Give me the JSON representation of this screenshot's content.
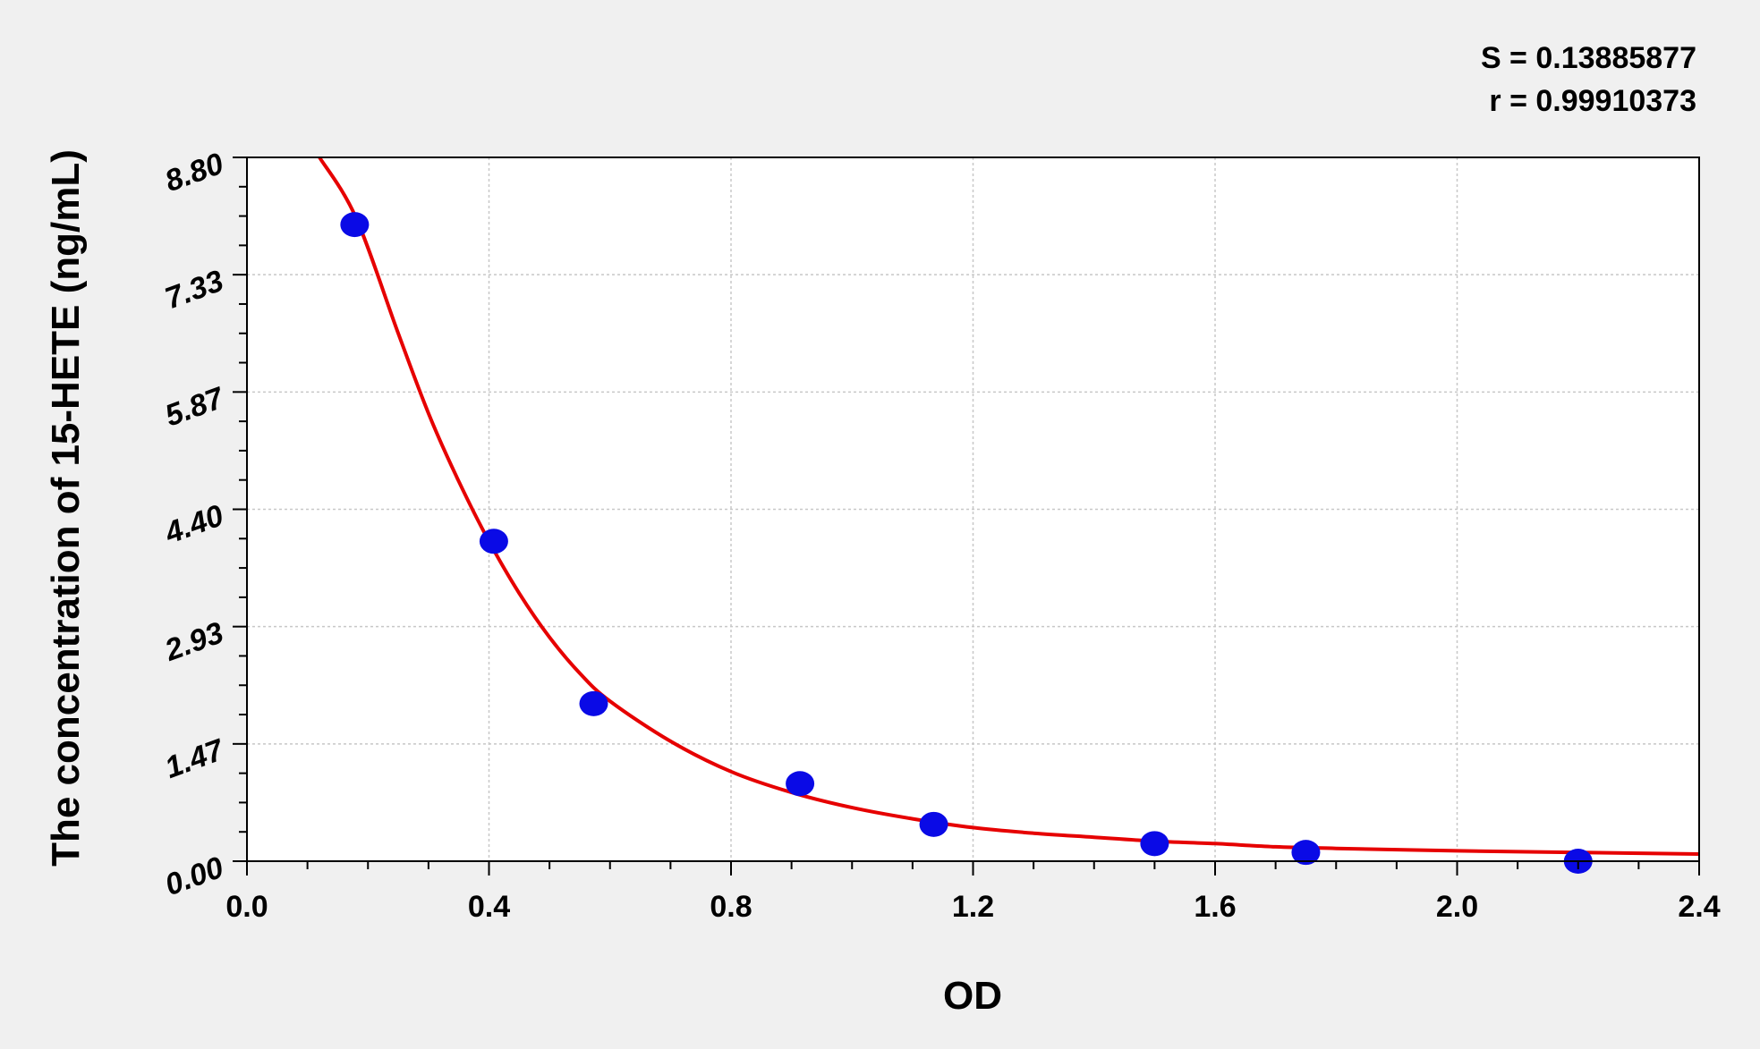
{
  "chart_data": {
    "type": "scatter",
    "xlabel": "OD",
    "ylabel": "The concentration of 15-HETE (ng/mL)",
    "xlim": [
      0,
      2.4
    ],
    "ylim": [
      0,
      8.8
    ],
    "x_ticks": [
      "0.0",
      "0.4",
      "0.8",
      "1.2",
      "1.6",
      "2.0",
      "2.4"
    ],
    "y_ticks": [
      "0.00",
      "1.47",
      "2.93",
      "4.40",
      "5.87",
      "7.33",
      "8.80"
    ],
    "grid": true,
    "stats": [
      "S = 0.13885877",
      "r = 0.99910373"
    ],
    "points": {
      "color": "#0a0ae6",
      "x": [
        0.178,
        0.408,
        0.573,
        0.914,
        1.135,
        1.5,
        1.75,
        2.2
      ],
      "y": [
        7.96,
        4.0,
        1.97,
        0.97,
        0.46,
        0.22,
        0.11,
        0.0
      ]
    },
    "fit_curve": {
      "color": "#e60000",
      "x": [
        0.12,
        0.18,
        0.25,
        0.3,
        0.35,
        0.4,
        0.45,
        0.5,
        0.55,
        0.6,
        0.7,
        0.8,
        0.9,
        1.0,
        1.1,
        1.2,
        1.3,
        1.4,
        1.5,
        1.6,
        1.7,
        1.8,
        2.0,
        2.2,
        2.4
      ],
      "y": [
        8.8,
        8.05,
        6.6,
        5.6,
        4.75,
        4.0,
        3.35,
        2.8,
        2.35,
        2.0,
        1.5,
        1.12,
        0.86,
        0.67,
        0.53,
        0.42,
        0.35,
        0.3,
        0.25,
        0.22,
        0.18,
        0.16,
        0.13,
        0.11,
        0.09
      ]
    }
  }
}
